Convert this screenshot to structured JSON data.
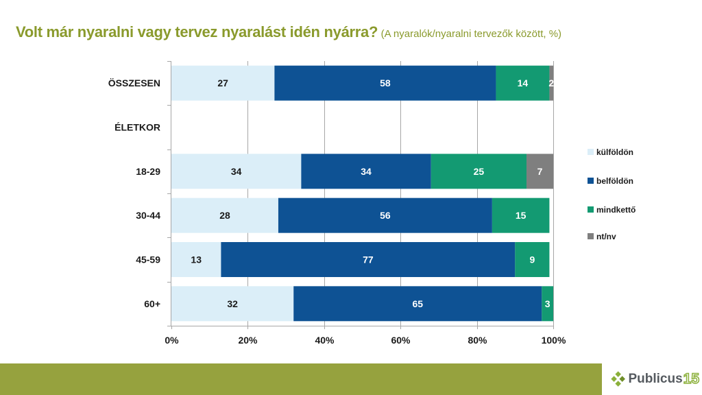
{
  "header": {
    "title": "Volt már nyaralni vagy tervez nyaralást idén nyárra?",
    "subtitle": "(A nyaralók/nyaralni tervezők között, %)"
  },
  "chart_data": {
    "type": "bar",
    "orientation": "horizontal",
    "stacked": true,
    "title": "Volt már nyaralni vagy tervez nyaralást idén nyárra?",
    "subtitle": "(A nyaralók/nyaralni tervezők között, %)",
    "categories": [
      "ÖSSZESEN",
      "ÉLETKOR",
      "18-29",
      "30-44",
      "45-59",
      "60+"
    ],
    "series": [
      {
        "name": "külföldön",
        "color": "#dbeef8",
        "label_color": "#1a1a1a",
        "values": [
          27,
          null,
          34,
          28,
          13,
          32
        ]
      },
      {
        "name": "belföldön",
        "color": "#0e5294",
        "label_color": "#ffffff",
        "values": [
          58,
          null,
          34,
          56,
          77,
          65
        ]
      },
      {
        "name": "mindkettő",
        "color": "#139a72",
        "label_color": "#ffffff",
        "values": [
          14,
          null,
          25,
          15,
          9,
          3
        ]
      },
      {
        "name": "nt/nv",
        "color": "#7f7f7f",
        "label_color": "#ffffff",
        "values": [
          2,
          null,
          7,
          null,
          null,
          null
        ]
      }
    ],
    "xlim": [
      0,
      100
    ],
    "xticks": [
      "0%",
      "20%",
      "40%",
      "60%",
      "80%",
      "100%"
    ],
    "grid": true,
    "legend": "right"
  },
  "footer": {
    "logo_text": "Publicus",
    "logo_number": "15"
  }
}
